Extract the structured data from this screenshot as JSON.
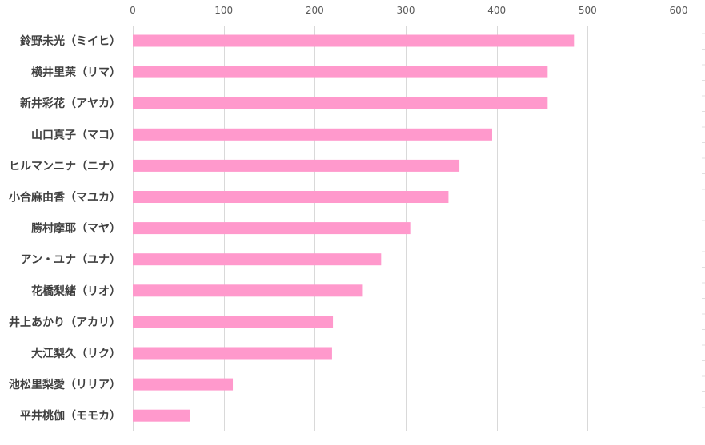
{
  "chart_data": {
    "type": "bar",
    "orientation": "horizontal",
    "xlim": [
      0,
      600
    ],
    "xticks": [
      "0",
      "100",
      "200",
      "300",
      "400",
      "500",
      "600"
    ],
    "grid": true,
    "bar_color": "#ff99cc",
    "categories": [
      "鈴野未光（ミイヒ）",
      "横井里茉（リマ）",
      "新井彩花（アヤカ）",
      "山口真子（マコ）",
      "ヒルマンニナ（ニナ）",
      "小合麻由香（マユカ）",
      "勝村摩耶（マヤ）",
      "アン・ユナ（ユナ）",
      "花橋梨緒（リオ）",
      "井上あかり（アカリ）",
      "大江梨久（リク）",
      "池松里梨愛（リリア）",
      "平井桃伽（モモカ）"
    ],
    "values": [
      485,
      456,
      456,
      395,
      359,
      347,
      305,
      273,
      252,
      220,
      219,
      110,
      63
    ]
  }
}
